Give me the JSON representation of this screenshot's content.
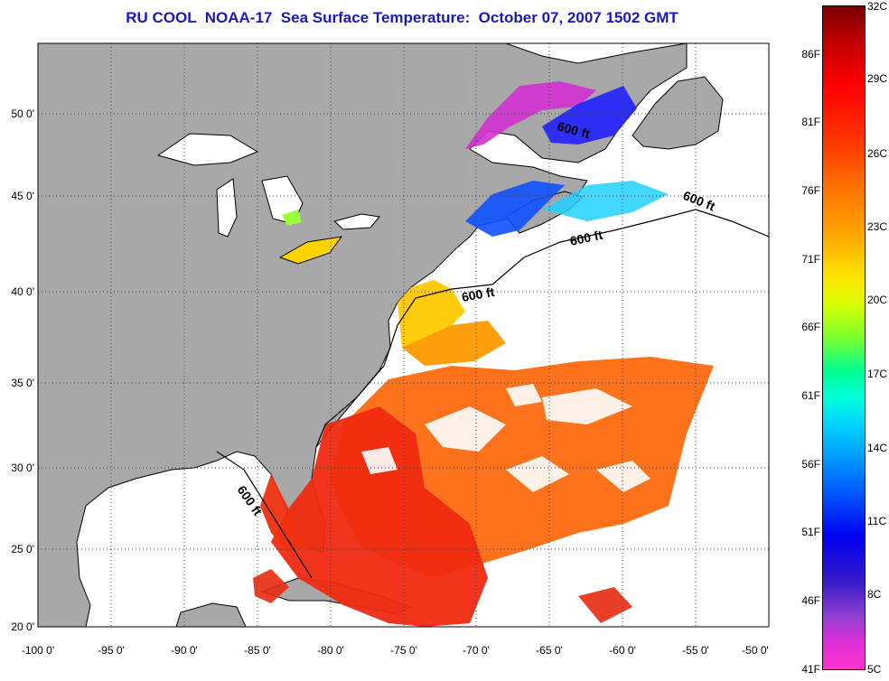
{
  "title": "RU COOL  NOAA-17  Sea Surface Temperature:  October 07, 2007 1502 GMT",
  "map": {
    "lon_labels": [
      "-100 0'",
      "-95 0'",
      "-90 0'",
      "-85 0'",
      "-80 0'",
      "-75 0'",
      "-70 0'",
      "-65 0'",
      "-60 0'",
      "-55 0'",
      "-50 0'"
    ],
    "lat_labels": [
      "50 0'",
      "45 0'",
      "40 0'",
      "35 0'",
      "30 0'",
      "25 0'",
      "20 0'"
    ],
    "contour_label": "600 ft",
    "colors": {
      "land": "#a8a8a8",
      "water_cloud": "#ffffff",
      "grid": "#555555"
    }
  },
  "scale": {
    "fahrenheit": [
      "86F",
      "81F",
      "76F",
      "71F",
      "66F",
      "61F",
      "56F",
      "51F",
      "46F",
      "41F"
    ],
    "celsius": [
      "32C",
      "29C",
      "26C",
      "23C",
      "20C",
      "17C",
      "14C",
      "11C",
      "8C",
      "5C"
    ]
  }
}
